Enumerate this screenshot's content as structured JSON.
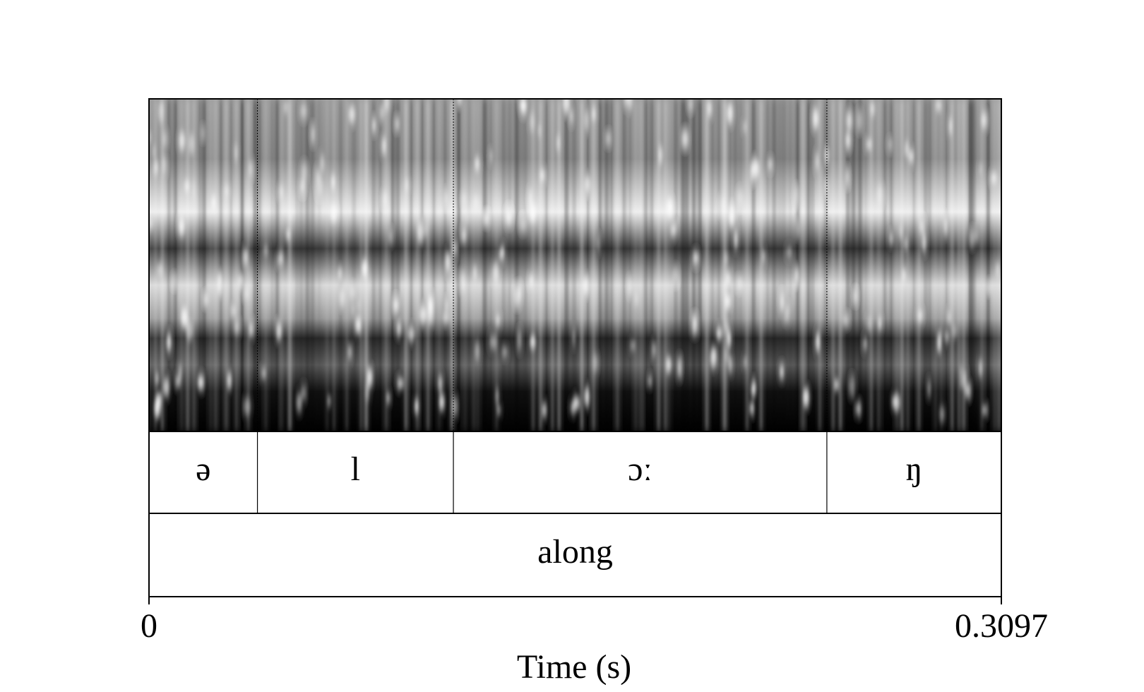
{
  "chart_data": {
    "type": "textgrid",
    "x_label": "Time (s)",
    "xlim": [
      0,
      0.3097
    ],
    "xticks": [
      0,
      0.3097
    ],
    "tiers": [
      {
        "intervals": [
          {
            "label": "ə",
            "start": 0,
            "end": 0.0394
          },
          {
            "label": "l",
            "start": 0.0394,
            "end": 0.1106
          },
          {
            "label": "ɔː",
            "start": 0.1106,
            "end": 0.2463
          },
          {
            "label": "ŋ",
            "start": 0.2463,
            "end": 0.3097
          }
        ]
      },
      {
        "intervals": [
          {
            "label": "along",
            "start": 0,
            "end": 0.3097
          }
        ]
      }
    ]
  }
}
